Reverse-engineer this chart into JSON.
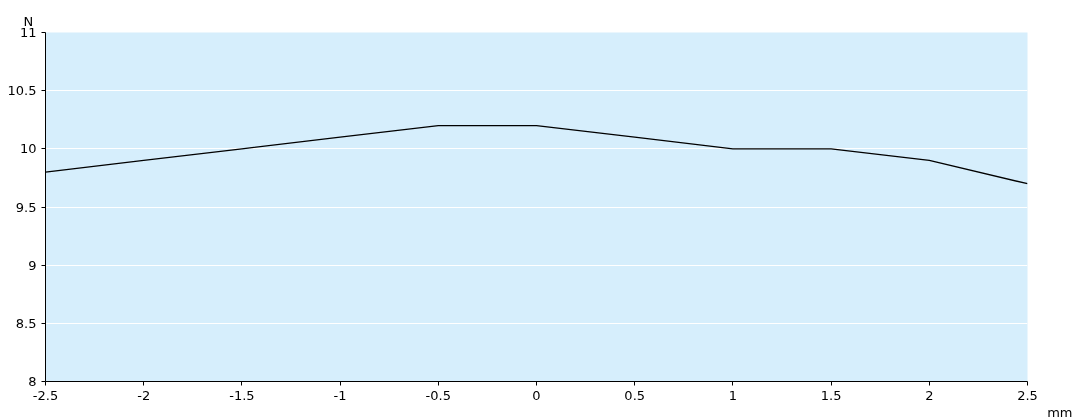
{
  "chart_data": {
    "type": "line",
    "xlabel": "mm",
    "ylabel": "N",
    "x": [
      -2.5,
      -2,
      -1.5,
      -1,
      -0.5,
      0,
      0.5,
      1,
      1.5,
      2,
      2.5
    ],
    "series": [
      {
        "color": "#000000",
        "values": [
          9.8,
          9.9,
          10.0,
          10.1,
          10.2,
          10.2,
          10.1,
          10.0,
          10.0,
          9.9,
          9.7
        ]
      }
    ],
    "xlim": [
      -2.5,
      2.5
    ],
    "ylim": [
      8,
      11
    ],
    "xticks": [
      -2.5,
      -2,
      -1.5,
      -1,
      -0.5,
      0,
      0.5,
      1,
      1.5,
      2,
      2.5
    ],
    "yticks": [
      8,
      8.5,
      9,
      9.5,
      10,
      10.5,
      11
    ],
    "grid": "y",
    "marker": "none",
    "line_style": "solid"
  }
}
